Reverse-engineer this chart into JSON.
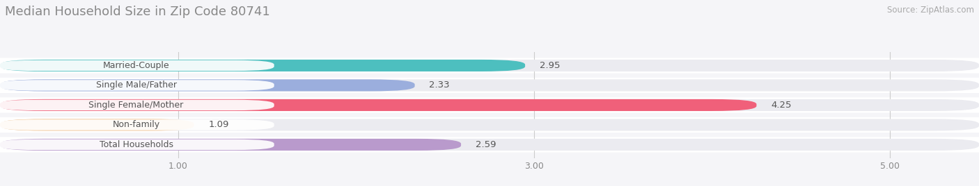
{
  "title": "Median Household Size in Zip Code 80741",
  "source": "Source: ZipAtlas.com",
  "categories": [
    "Married-Couple",
    "Single Male/Father",
    "Single Female/Mother",
    "Non-family",
    "Total Households"
  ],
  "values": [
    2.95,
    2.33,
    4.25,
    1.09,
    2.59
  ],
  "bar_colors": [
    "#4DBFBF",
    "#9BAEDD",
    "#F0607A",
    "#F5C896",
    "#B99ACC"
  ],
  "bar_edge_colors": [
    "#4DBFBF",
    "#9BAEDD",
    "#F0607A",
    "#F5C896",
    "#B99ACC"
  ],
  "label_bg_colors": [
    "#e8f8f8",
    "#e8ecf8",
    "#fce8ee",
    "#fdf4e8",
    "#f0eaf6"
  ],
  "xlim": [
    0,
    5.5
  ],
  "xstart": 0.0,
  "xticks": [
    1.0,
    3.0,
    5.0
  ],
  "background_color": "#f5f5f8",
  "bar_bg_color": "#ebebf0",
  "row_bg_color": "#f5f5f8",
  "title_fontsize": 13,
  "label_fontsize": 9,
  "value_fontsize": 9.5
}
